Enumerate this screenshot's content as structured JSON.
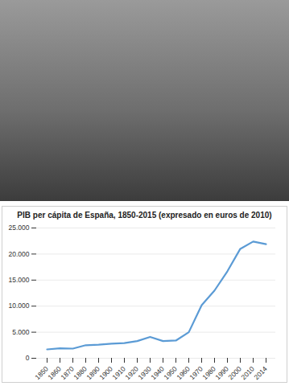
{
  "chart_data": {
    "type": "line",
    "title": "PIB per cápita de España, 1850-2015 (expresado en euros de 2010)",
    "categories": [
      "1850",
      "1860",
      "1870",
      "1880",
      "1890",
      "1900",
      "1910",
      "1920",
      "1930",
      "1940",
      "1950",
      "1960",
      "1970",
      "1980",
      "1990",
      "2000",
      "2010",
      "2014"
    ],
    "values": [
      1700,
      1900,
      1850,
      2500,
      2600,
      2800,
      2900,
      3300,
      4100,
      3300,
      3400,
      5000,
      10200,
      13000,
      16700,
      21000,
      22400,
      21900
    ],
    "color": "#5b9bd5",
    "ylim": [
      0,
      25000
    ],
    "yticks": [
      0,
      {
        "value": 5000,
        "label": "5.000"
      },
      {
        "value": 10000,
        "label": "10.000"
      },
      {
        "value": 15000,
        "label": "15.000"
      },
      {
        "value": 20000,
        "label": "20.000"
      },
      {
        "value": 25000,
        "label": "25.000"
      }
    ],
    "grid": true
  }
}
